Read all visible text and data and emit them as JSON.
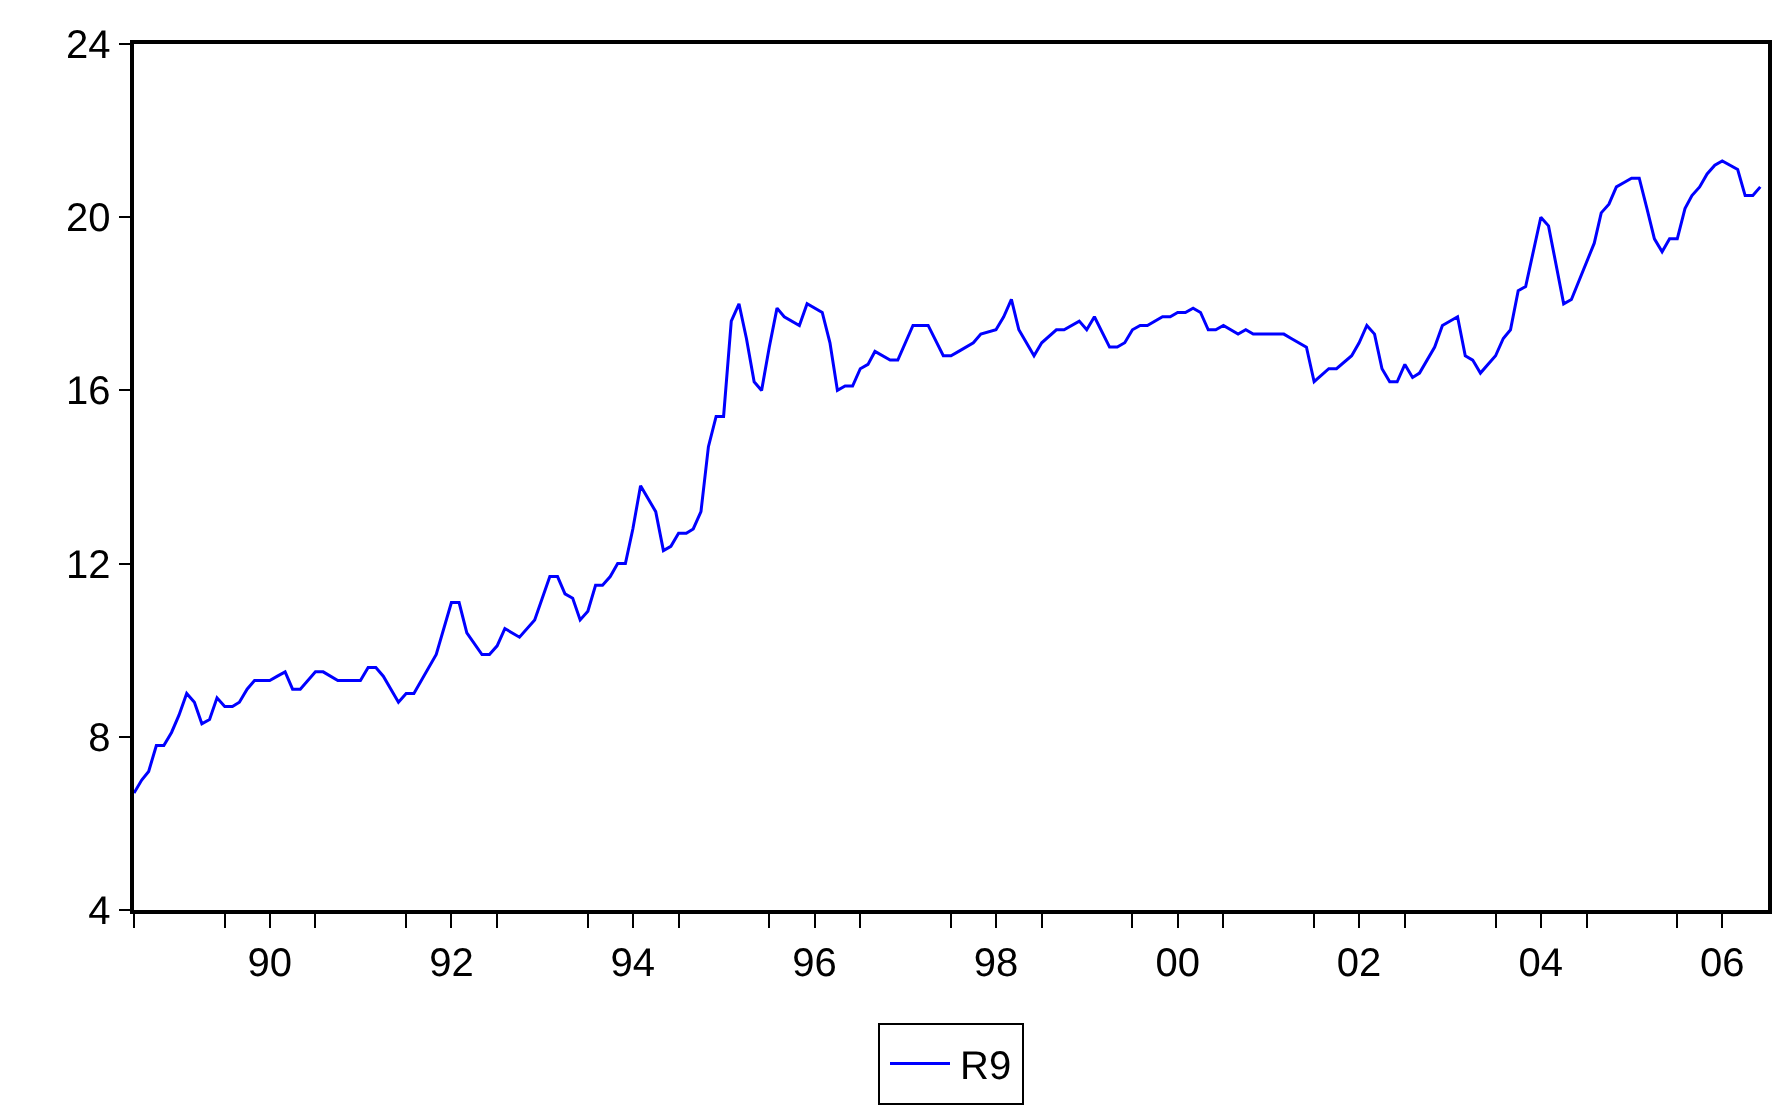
{
  "chart_data": {
    "type": "line",
    "x": [
      "1989-01",
      "1989-02",
      "1989-03",
      "1989-04",
      "1989-05",
      "1989-06",
      "1989-07",
      "1989-08",
      "1989-09",
      "1989-10",
      "1989-11",
      "1989-12",
      "1990-01",
      "1990-02",
      "1990-03",
      "1990-04",
      "1990-05",
      "1990-07",
      "1990-08",
      "1990-09",
      "1990-10",
      "1990-11",
      "1991-01",
      "1991-02",
      "1991-04",
      "1991-07",
      "1991-08",
      "1991-09",
      "1991-10",
      "1991-12",
      "1992-01",
      "1992-02",
      "1992-05",
      "1992-07",
      "1992-08",
      "1992-09",
      "1992-11",
      "1992-12",
      "1993-01",
      "1993-02",
      "1993-04",
      "1993-06",
      "1993-08",
      "1993-09",
      "1993-10",
      "1993-11",
      "1993-12",
      "1994-01",
      "1994-02",
      "1994-03",
      "1994-04",
      "1994-05",
      "1994-06",
      "1994-07",
      "1994-08",
      "1994-10",
      "1994-11",
      "1994-12",
      "1995-01",
      "1995-02",
      "1995-03",
      "1995-04",
      "1995-05",
      "1995-06",
      "1995-07",
      "1995-08",
      "1995-09",
      "1995-10",
      "1995-11",
      "1995-12",
      "1996-01",
      "1996-02",
      "1996-03",
      "1996-05",
      "1996-06",
      "1996-08",
      "1996-09",
      "1996-10",
      "1996-11",
      "1996-12",
      "1997-01",
      "1997-02",
      "1997-03",
      "1997-05",
      "1997-06",
      "1997-08",
      "1997-10",
      "1997-12",
      "1998-01",
      "1998-02",
      "1998-04",
      "1998-05",
      "1998-07",
      "1998-08",
      "1998-09",
      "1998-10",
      "1998-12",
      "1999-01",
      "1999-03",
      "1999-04",
      "1999-06",
      "1999-07",
      "1999-08",
      "1999-10",
      "1999-11",
      "1999-12",
      "2000-01",
      "2000-02",
      "2000-03",
      "2000-05",
      "2000-06",
      "2000-07",
      "2000-08",
      "2000-09",
      "2000-10",
      "2000-11",
      "2000-12",
      "2001-01",
      "2001-03",
      "2001-04",
      "2001-05",
      "2001-09",
      "2001-10",
      "2001-12",
      "2002-01",
      "2002-03",
      "2002-04",
      "2002-06",
      "2002-07",
      "2002-08",
      "2002-09",
      "2002-10",
      "2002-11",
      "2002-12",
      "2003-01",
      "2003-02",
      "2003-03",
      "2003-05",
      "2003-06",
      "2003-08",
      "2003-09",
      "2003-10",
      "2003-11",
      "2003-12",
      "2004-01",
      "2004-02",
      "2004-03",
      "2004-04",
      "2004-05",
      "2004-07",
      "2004-08",
      "2004-10",
      "2004-11",
      "2005-02",
      "2005-03",
      "2005-04",
      "2005-05",
      "2005-06",
      "2005-07",
      "2005-08",
      "2005-09",
      "2005-10",
      "2005-11",
      "2005-12",
      "2006-01",
      "2006-02",
      "2006-03",
      "2006-04",
      "2006-05",
      "2006-06",
      "2006-07",
      "2006-09",
      "2006-10",
      "2006-11",
      "2006-12"
    ],
    "series": [
      {
        "name": "R9",
        "color": "#0000ff",
        "values": [
          6.7,
          7.0,
          7.2,
          7.8,
          7.8,
          8.1,
          8.5,
          9.0,
          8.8,
          8.3,
          8.4,
          8.9,
          8.7,
          8.7,
          8.8,
          9.1,
          9.3,
          9.3,
          9.4,
          9.5,
          9.1,
          9.1,
          9.5,
          9.5,
          9.3,
          9.3,
          9.6,
          9.6,
          9.4,
          8.8,
          9.0,
          9.0,
          9.9,
          11.1,
          11.1,
          10.4,
          9.9,
          9.9,
          10.1,
          10.5,
          10.3,
          10.7,
          11.7,
          11.7,
          11.3,
          11.2,
          10.7,
          10.9,
          11.5,
          11.5,
          11.7,
          12.0,
          12.0,
          12.8,
          13.8,
          13.2,
          12.3,
          12.4,
          12.7,
          12.7,
          12.8,
          13.2,
          14.7,
          15.4,
          15.4,
          17.6,
          18.0,
          17.2,
          16.2,
          16.0,
          17.0,
          17.9,
          17.7,
          17.5,
          18.0,
          17.8,
          17.1,
          16.0,
          16.1,
          16.1,
          16.5,
          16.6,
          16.9,
          16.7,
          16.7,
          17.5,
          17.5,
          16.8,
          16.8,
          16.9,
          17.1,
          17.3,
          17.4,
          17.7,
          18.1,
          17.4,
          16.8,
          17.1,
          17.4,
          17.4,
          17.6,
          17.4,
          17.7,
          17.0,
          17.0,
          17.1,
          17.4,
          17.5,
          17.5,
          17.7,
          17.7,
          17.8,
          17.8,
          17.9,
          17.8,
          17.4,
          17.4,
          17.5,
          17.3,
          17.4,
          17.3,
          17.3,
          17.2,
          17.0,
          16.2,
          16.5,
          16.5,
          16.8,
          17.1,
          17.5,
          17.3,
          16.5,
          16.2,
          16.2,
          16.6,
          16.3,
          16.4,
          17.0,
          17.5,
          17.7,
          16.8,
          16.7,
          16.4,
          16.6,
          16.8,
          17.2,
          17.4,
          18.3,
          18.4,
          20.0,
          19.8,
          18.0,
          18.1,
          19.4,
          20.1,
          20.3,
          20.7,
          20.8,
          20.9,
          20.9,
          20.2,
          19.5,
          19.2,
          19.5,
          19.5,
          20.2,
          20.5,
          20.7,
          21.0,
          21.2,
          21.3,
          21.1,
          20.5,
          20.5,
          20.7
        ]
      }
    ],
    "xlim": [
      "1989-01",
      "2007-01"
    ],
    "xticks": [
      {
        "value": "1989-01",
        "label": null
      },
      {
        "value": "1990-01",
        "label": null
      },
      {
        "value": "1990-07",
        "label": "90"
      },
      {
        "value": "1991-01",
        "label": null
      },
      {
        "value": "1992-01",
        "label": null
      },
      {
        "value": "1992-07",
        "label": "92"
      },
      {
        "value": "1993-01",
        "label": null
      },
      {
        "value": "1994-01",
        "label": null
      },
      {
        "value": "1994-07",
        "label": "94"
      },
      {
        "value": "1995-01",
        "label": null
      },
      {
        "value": "1996-01",
        "label": null
      },
      {
        "value": "1996-07",
        "label": "96"
      },
      {
        "value": "1997-01",
        "label": null
      },
      {
        "value": "1998-01",
        "label": null
      },
      {
        "value": "1998-07",
        "label": "98"
      },
      {
        "value": "1999-01",
        "label": null
      },
      {
        "value": "2000-01",
        "label": null
      },
      {
        "value": "2000-07",
        "label": "00"
      },
      {
        "value": "2001-01",
        "label": null
      },
      {
        "value": "2002-01",
        "label": null
      },
      {
        "value": "2002-07",
        "label": "02"
      },
      {
        "value": "2003-01",
        "label": null
      },
      {
        "value": "2004-01",
        "label": null
      },
      {
        "value": "2004-07",
        "label": "04"
      },
      {
        "value": "2005-01",
        "label": null
      },
      {
        "value": "2006-01",
        "label": null
      },
      {
        "value": "2006-07",
        "label": "06"
      }
    ],
    "ylim": [
      4,
      24
    ],
    "yticks": [
      4,
      8,
      12,
      16,
      20,
      24
    ],
    "grid": false,
    "legend": "bottom",
    "line_style": "solid"
  }
}
